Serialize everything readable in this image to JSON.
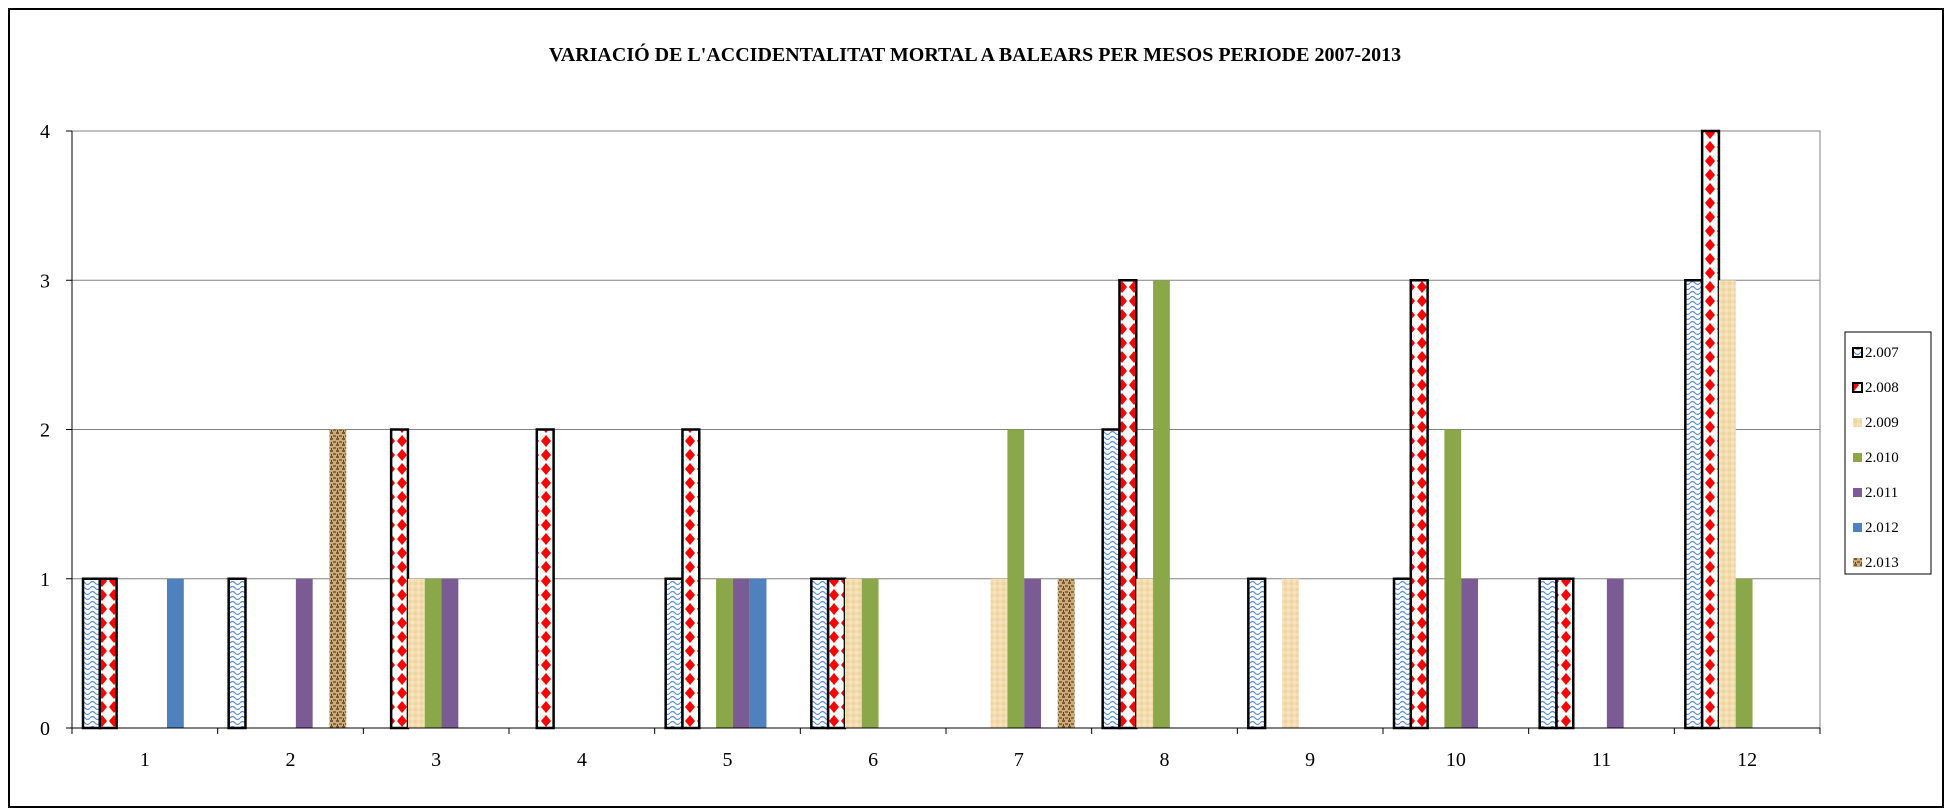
{
  "chart_data": {
    "type": "bar",
    "title": "VARIACIÓ DE L'ACCIDENTALITAT MORTAL A BALEARS PER MESOS PERIODE 2007-2013",
    "xlabel": "",
    "ylabel": "",
    "ylim": [
      0,
      4
    ],
    "yticks": [
      "0",
      "1",
      "2",
      "3",
      "4"
    ],
    "grid": true,
    "legend_position": "right",
    "categories": [
      "1",
      "2",
      "3",
      "4",
      "5",
      "6",
      "7",
      "8",
      "9",
      "10",
      "11",
      "12"
    ],
    "series": [
      {
        "name": "2.007",
        "pattern": "blue-wave",
        "color": "#4472c4",
        "values": [
          1,
          1,
          0,
          0,
          1,
          1,
          0,
          2,
          1,
          1,
          1,
          3
        ]
      },
      {
        "name": "2.008",
        "pattern": "red-diamond",
        "color": "#ff0000",
        "values": [
          1,
          0,
          2,
          2,
          2,
          1,
          0,
          3,
          0,
          3,
          1,
          4
        ]
      },
      {
        "name": "2.009",
        "pattern": "tan",
        "color": "#f2d7a6",
        "values": [
          0,
          0,
          1,
          0,
          0,
          1,
          1,
          1,
          1,
          0,
          0,
          3
        ]
      },
      {
        "name": "2.010",
        "pattern": "solid",
        "color": "#8aa84a",
        "values": [
          0,
          0,
          1,
          0,
          1,
          1,
          2,
          3,
          0,
          2,
          0,
          1
        ]
      },
      {
        "name": "2.011",
        "pattern": "solid",
        "color": "#7a5b94",
        "values": [
          0,
          1,
          1,
          0,
          1,
          0,
          1,
          0,
          0,
          1,
          1,
          0
        ]
      },
      {
        "name": "2.012",
        "pattern": "solid",
        "color": "#4e81bd",
        "values": [
          1,
          0,
          0,
          0,
          1,
          0,
          0,
          0,
          0,
          0,
          0,
          0
        ]
      },
      {
        "name": "2.013",
        "pattern": "burlap",
        "color": "#9c7a4c",
        "values": [
          0,
          2,
          0,
          0,
          0,
          0,
          1,
          0,
          0,
          0,
          0,
          0
        ]
      }
    ]
  }
}
